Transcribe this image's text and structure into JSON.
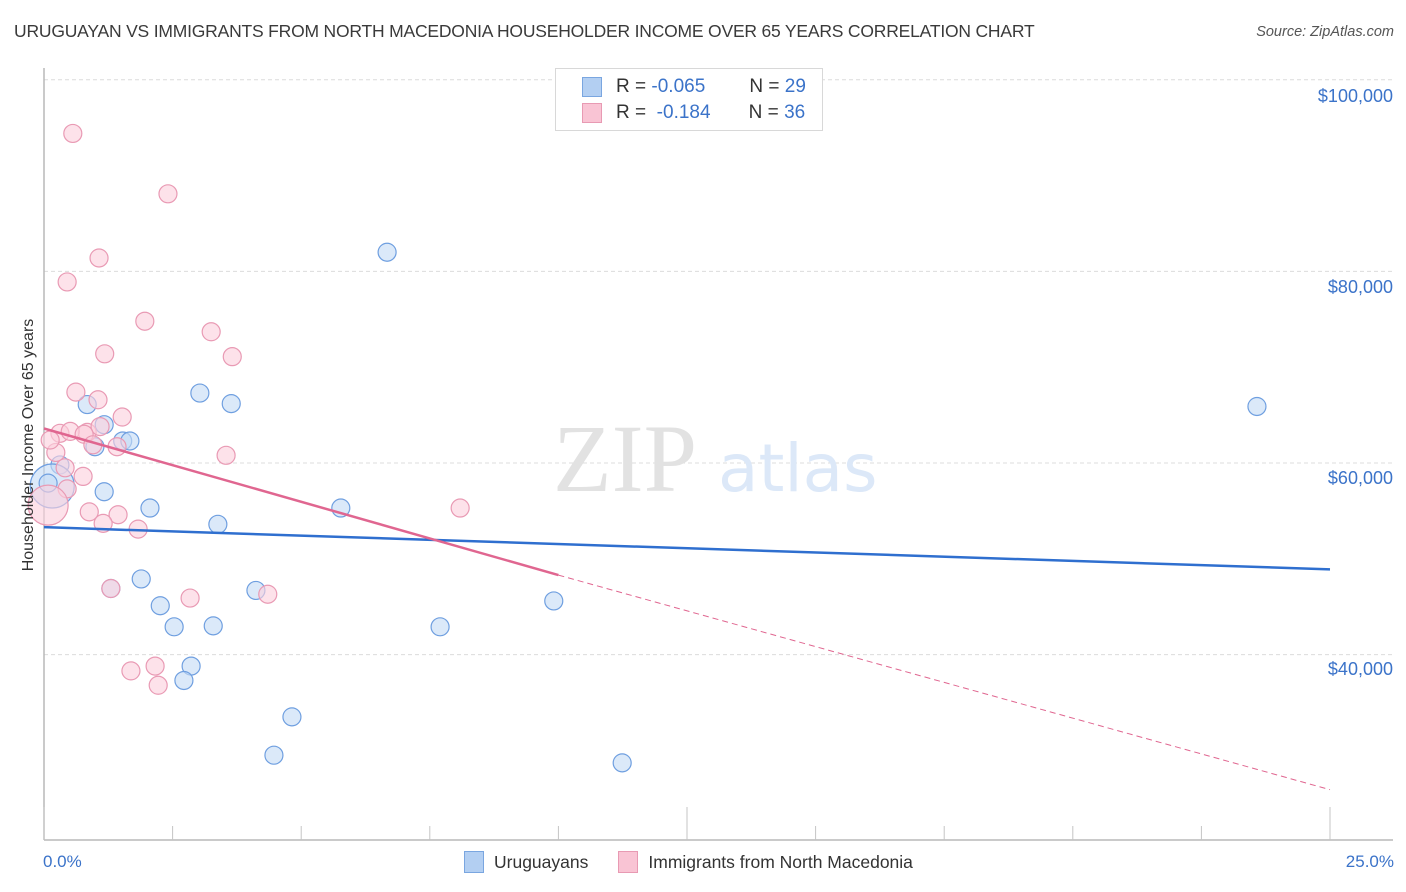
{
  "header": {
    "title": "URUGUAYAN VS IMMIGRANTS FROM NORTH MACEDONIA HOUSEHOLDER INCOME OVER 65 YEARS CORRELATION CHART",
    "source": "Source: ZipAtlas.com"
  },
  "watermark": {
    "zip": "ZIP",
    "atlas": "atlas"
  },
  "legend_top": {
    "rows": [
      {
        "r_label": "R =",
        "r_value": "-0.065",
        "n_label": "N =",
        "n_value": "29",
        "color": "#b3cff2",
        "border": "#7aa6e0"
      },
      {
        "r_label": "R =",
        "r_value": "-0.184",
        "n_label": "N =",
        "n_value": "36",
        "color": "#f9c4d4",
        "border": "#e89ab3"
      }
    ]
  },
  "legend_bottom": {
    "items": [
      {
        "label": "Uruguayans",
        "color": "#b3cff2",
        "border": "#7aa6e0"
      },
      {
        "label": "Immigrants from North Macedonia",
        "color": "#f9c4d4",
        "border": "#e89ab3"
      }
    ]
  },
  "axes": {
    "y_label": "Householder Income Over 65 years",
    "y_ticks": [
      "$100,000",
      "$80,000",
      "$60,000",
      "$40,000"
    ],
    "x_ticks": [
      "0.0%",
      "25.0%"
    ]
  },
  "colors": {
    "blue_fill": "#c5dbf5",
    "blue_stroke": "#6f9fe0",
    "blue_line": "#2f6fcf",
    "pink_fill": "#fbd0dd",
    "pink_stroke": "#e99ab4",
    "pink_line": "#e06690",
    "tick_label": "#3b73c9"
  },
  "chart_data": {
    "type": "scatter",
    "title": "URUGUAYAN VS IMMIGRANTS FROM NORTH MACEDONIA HOUSEHOLDER INCOME OVER 65 YEARS CORRELATION CHART",
    "xlabel": "",
    "ylabel": "Householder Income Over 65 years",
    "xlim": [
      0,
      25
    ],
    "ylim": [
      22000,
      102000
    ],
    "x_unit": "%",
    "y_ticks": [
      40000,
      60000,
      80000,
      100000
    ],
    "grid": true,
    "legend_position": "bottom-center",
    "series": [
      {
        "name": "Uruguayans",
        "R": -0.065,
        "N": 29,
        "trend": {
          "x": [
            0,
            25
          ],
          "y": [
            53300,
            48900
          ],
          "style": "solid"
        },
        "points": [
          {
            "x": 6.67,
            "y": 82000
          },
          {
            "x": 23.58,
            "y": 65900
          },
          {
            "x": 3.03,
            "y": 67300
          },
          {
            "x": 3.64,
            "y": 66200
          },
          {
            "x": 0.84,
            "y": 66100
          },
          {
            "x": 1.17,
            "y": 64000
          },
          {
            "x": 0.31,
            "y": 59800
          },
          {
            "x": 1.53,
            "y": 62300
          },
          {
            "x": 0.99,
            "y": 61700
          },
          {
            "x": 1.67,
            "y": 62300
          },
          {
            "x": 1.17,
            "y": 57000
          },
          {
            "x": 2.06,
            "y": 55300
          },
          {
            "x": 3.38,
            "y": 53600
          },
          {
            "x": 5.77,
            "y": 55300
          },
          {
            "x": 1.89,
            "y": 47900
          },
          {
            "x": 2.26,
            "y": 45100
          },
          {
            "x": 2.53,
            "y": 42900
          },
          {
            "x": 3.29,
            "y": 43000
          },
          {
            "x": 4.12,
            "y": 46700
          },
          {
            "x": 7.7,
            "y": 42900
          },
          {
            "x": 9.91,
            "y": 45600
          },
          {
            "x": 2.86,
            "y": 38800
          },
          {
            "x": 2.72,
            "y": 37300
          },
          {
            "x": 4.82,
            "y": 33500
          },
          {
            "x": 4.47,
            "y": 29500
          },
          {
            "x": 11.24,
            "y": 28700
          },
          {
            "x": 0.16,
            "y": 57600
          },
          {
            "x": 1.3,
            "y": 46900
          },
          {
            "x": 0.08,
            "y": 57900
          }
        ]
      },
      {
        "name": "Immigrants from North Macedonia",
        "R": -0.184,
        "N": 36,
        "trend": {
          "x": [
            0,
            10
          ],
          "y": [
            63600,
            48300
          ],
          "style": "solid",
          "extrapolated": {
            "x": [
              10,
              25
            ],
            "y": [
              48300,
              25900
            ],
            "style": "dashed"
          }
        },
        "points": [
          {
            "x": 0.56,
            "y": 94400
          },
          {
            "x": 2.41,
            "y": 88100
          },
          {
            "x": 1.07,
            "y": 81400
          },
          {
            "x": 0.45,
            "y": 78900
          },
          {
            "x": 1.96,
            "y": 74800
          },
          {
            "x": 3.25,
            "y": 73700
          },
          {
            "x": 1.18,
            "y": 71400
          },
          {
            "x": 3.66,
            "y": 71100
          },
          {
            "x": 0.62,
            "y": 67400
          },
          {
            "x": 1.05,
            "y": 66600
          },
          {
            "x": 1.52,
            "y": 64800
          },
          {
            "x": 0.84,
            "y": 63200
          },
          {
            "x": 0.31,
            "y": 63100
          },
          {
            "x": 3.54,
            "y": 60800
          },
          {
            "x": 0.76,
            "y": 58600
          },
          {
            "x": 0.45,
            "y": 57300
          },
          {
            "x": 0.88,
            "y": 54900
          },
          {
            "x": 1.44,
            "y": 54600
          },
          {
            "x": 1.83,
            "y": 53100
          },
          {
            "x": 1.15,
            "y": 53700
          },
          {
            "x": 8.09,
            "y": 55300
          },
          {
            "x": 1.3,
            "y": 46900
          },
          {
            "x": 2.84,
            "y": 45900
          },
          {
            "x": 4.35,
            "y": 46300
          },
          {
            "x": 1.69,
            "y": 38300
          },
          {
            "x": 2.16,
            "y": 38800
          },
          {
            "x": 2.22,
            "y": 36800
          },
          {
            "x": 0.08,
            "y": 55600
          },
          {
            "x": 0.23,
            "y": 61100
          },
          {
            "x": 0.51,
            "y": 63300
          },
          {
            "x": 1.09,
            "y": 63800
          },
          {
            "x": 1.42,
            "y": 61700
          },
          {
            "x": 0.78,
            "y": 63000
          },
          {
            "x": 0.12,
            "y": 62400
          },
          {
            "x": 0.41,
            "y": 59500
          },
          {
            "x": 0.95,
            "y": 61900
          }
        ]
      }
    ]
  }
}
